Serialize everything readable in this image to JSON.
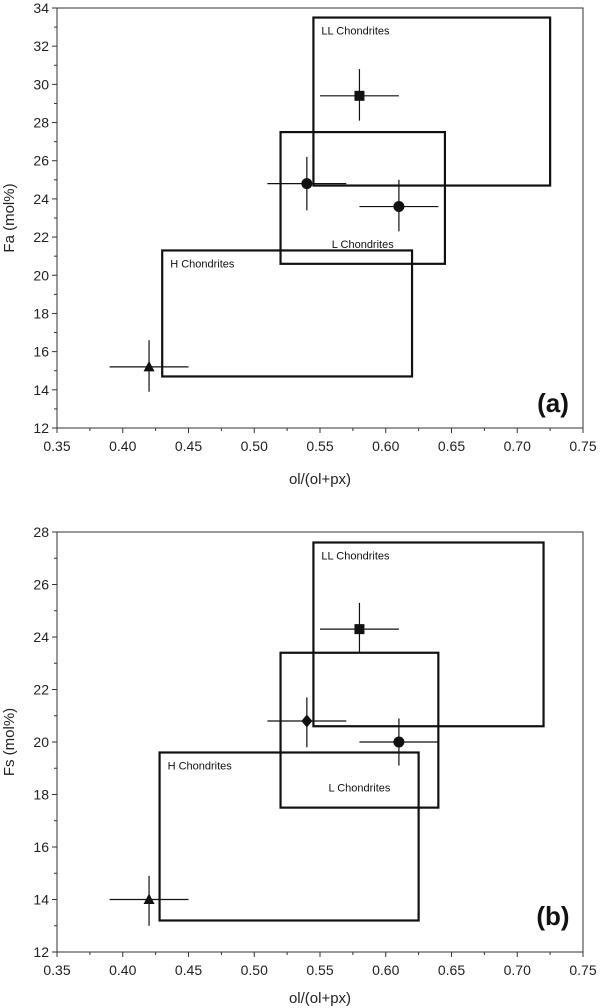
{
  "chart_data": [
    {
      "type": "scatter",
      "panel_label": "(a)",
      "xlabel": "ol/(ol+px)",
      "ylabel": "Fa (mol%)",
      "xlim": [
        0.35,
        0.75
      ],
      "ylim": [
        12,
        34
      ],
      "xticks": [
        "0.35",
        "0.40",
        "0.45",
        "0.50",
        "0.55",
        "0.60",
        "0.65",
        "0.70",
        "0.75"
      ],
      "yticks": [
        "12",
        "14",
        "16",
        "18",
        "20",
        "22",
        "24",
        "26",
        "28",
        "30",
        "32",
        "34"
      ],
      "regions": [
        {
          "label": "LL Chondrites",
          "x": [
            0.545,
            0.725
          ],
          "y": [
            24.7,
            33.5
          ],
          "label_pos": "top-left"
        },
        {
          "label": "L Chondrites",
          "x": [
            0.52,
            0.645
          ],
          "y": [
            20.6,
            27.5
          ],
          "label_pos": "bottom-center"
        },
        {
          "label": "H Chondrites",
          "x": [
            0.43,
            0.62
          ],
          "y": [
            14.7,
            21.3
          ],
          "label_pos": "top-left"
        }
      ],
      "points": [
        {
          "marker": "triangle",
          "x": 0.42,
          "y": 15.2,
          "xerr": [
            0.39,
            0.45
          ],
          "yerr": [
            13.9,
            16.6
          ]
        },
        {
          "marker": "circle",
          "x": 0.54,
          "y": 24.8,
          "xerr": [
            0.51,
            0.57
          ],
          "yerr": [
            23.4,
            26.2
          ]
        },
        {
          "marker": "circle",
          "x": 0.61,
          "y": 23.6,
          "xerr": [
            0.58,
            0.64
          ],
          "yerr": [
            22.3,
            25.0
          ]
        },
        {
          "marker": "square",
          "x": 0.58,
          "y": 29.4,
          "xerr": [
            0.55,
            0.61
          ],
          "yerr": [
            28.1,
            30.8
          ]
        }
      ]
    },
    {
      "type": "scatter",
      "panel_label": "(b)",
      "xlabel": "ol/(ol+px)",
      "ylabel": "Fs (mol%)",
      "xlim": [
        0.35,
        0.75
      ],
      "ylim": [
        12,
        28
      ],
      "xticks": [
        "0.35",
        "0.40",
        "0.45",
        "0.50",
        "0.55",
        "0.60",
        "0.65",
        "0.70",
        "0.75"
      ],
      "yticks": [
        "12",
        "14",
        "16",
        "18",
        "20",
        "22",
        "24",
        "26",
        "28"
      ],
      "regions": [
        {
          "label": "LL Chondrites",
          "x": [
            0.545,
            0.72
          ],
          "y": [
            20.6,
            27.6
          ],
          "label_pos": "top-left"
        },
        {
          "label": "L Chondrites",
          "x": [
            0.52,
            0.64
          ],
          "y": [
            17.5,
            23.4
          ],
          "label_pos": "bottom-center"
        },
        {
          "label": "H Chondrites",
          "x": [
            0.428,
            0.625
          ],
          "y": [
            13.2,
            19.6
          ],
          "label_pos": "top-left"
        }
      ],
      "points": [
        {
          "marker": "triangle",
          "x": 0.42,
          "y": 14.0,
          "xerr": [
            0.39,
            0.45
          ],
          "yerr": [
            13.0,
            14.9
          ]
        },
        {
          "marker": "diamond",
          "x": 0.54,
          "y": 20.8,
          "xerr": [
            0.51,
            0.57
          ],
          "yerr": [
            19.8,
            21.7
          ]
        },
        {
          "marker": "circle",
          "x": 0.61,
          "y": 20.0,
          "xerr": [
            0.58,
            0.64
          ],
          "yerr": [
            19.1,
            20.9
          ]
        },
        {
          "marker": "square",
          "x": 0.58,
          "y": 24.3,
          "xerr": [
            0.55,
            0.61
          ],
          "yerr": [
            23.4,
            25.3
          ]
        }
      ]
    }
  ]
}
